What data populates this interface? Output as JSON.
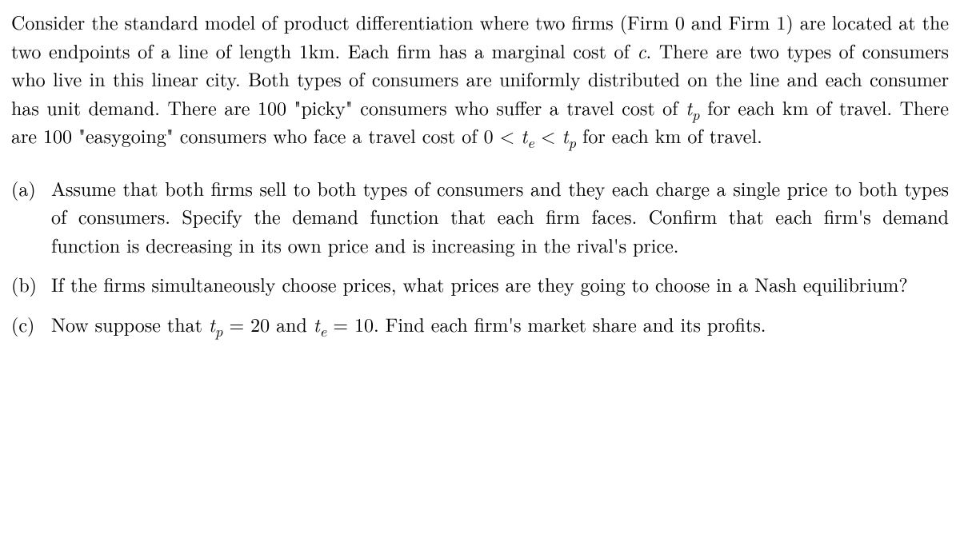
{
  "intro": {
    "part1": "Consider the standard model of product differentiation where two firms (Firm 0 and Firm 1) are located at the two endpoints of a line of length 1km. Each firm has a marginal cost of ",
    "c": "c",
    "part2": ". There are two types of consumers who live in this linear city. Both types of consumers are uniformly distributed on the line and each consumer has unit demand. There are 100 \"picky\" consumers who suffer a travel cost of ",
    "tp1": "t",
    "tp1_sub": "p",
    "part3": " for each km of travel. There are 100 \"easygoing\" consumers who face a travel cost of 0 < ",
    "te": "t",
    "te_sub": "e",
    "lt": " < ",
    "tp2": "t",
    "tp2_sub": "p",
    "part4": " for each km of travel."
  },
  "qa": {
    "label": "(a)",
    "text": "Assume that both firms sell to both types of consumers and they each charge a single price to both types of consumers. Specify the demand function that each firm faces. Confirm that each firm's demand function is decreasing in its own price and is increasing in the rival's price."
  },
  "qb": {
    "label": "(b)",
    "text": "If the firms simultaneously choose prices, what prices are they going to choose in a Nash equilibrium?"
  },
  "qc": {
    "label": "(c)",
    "part1": "Now suppose that ",
    "tp": "t",
    "tp_sub": "p",
    "eq1": " = 20 and ",
    "te": "t",
    "te_sub": "e",
    "eq2": " = 10. Find each firm's market share and its profits."
  }
}
